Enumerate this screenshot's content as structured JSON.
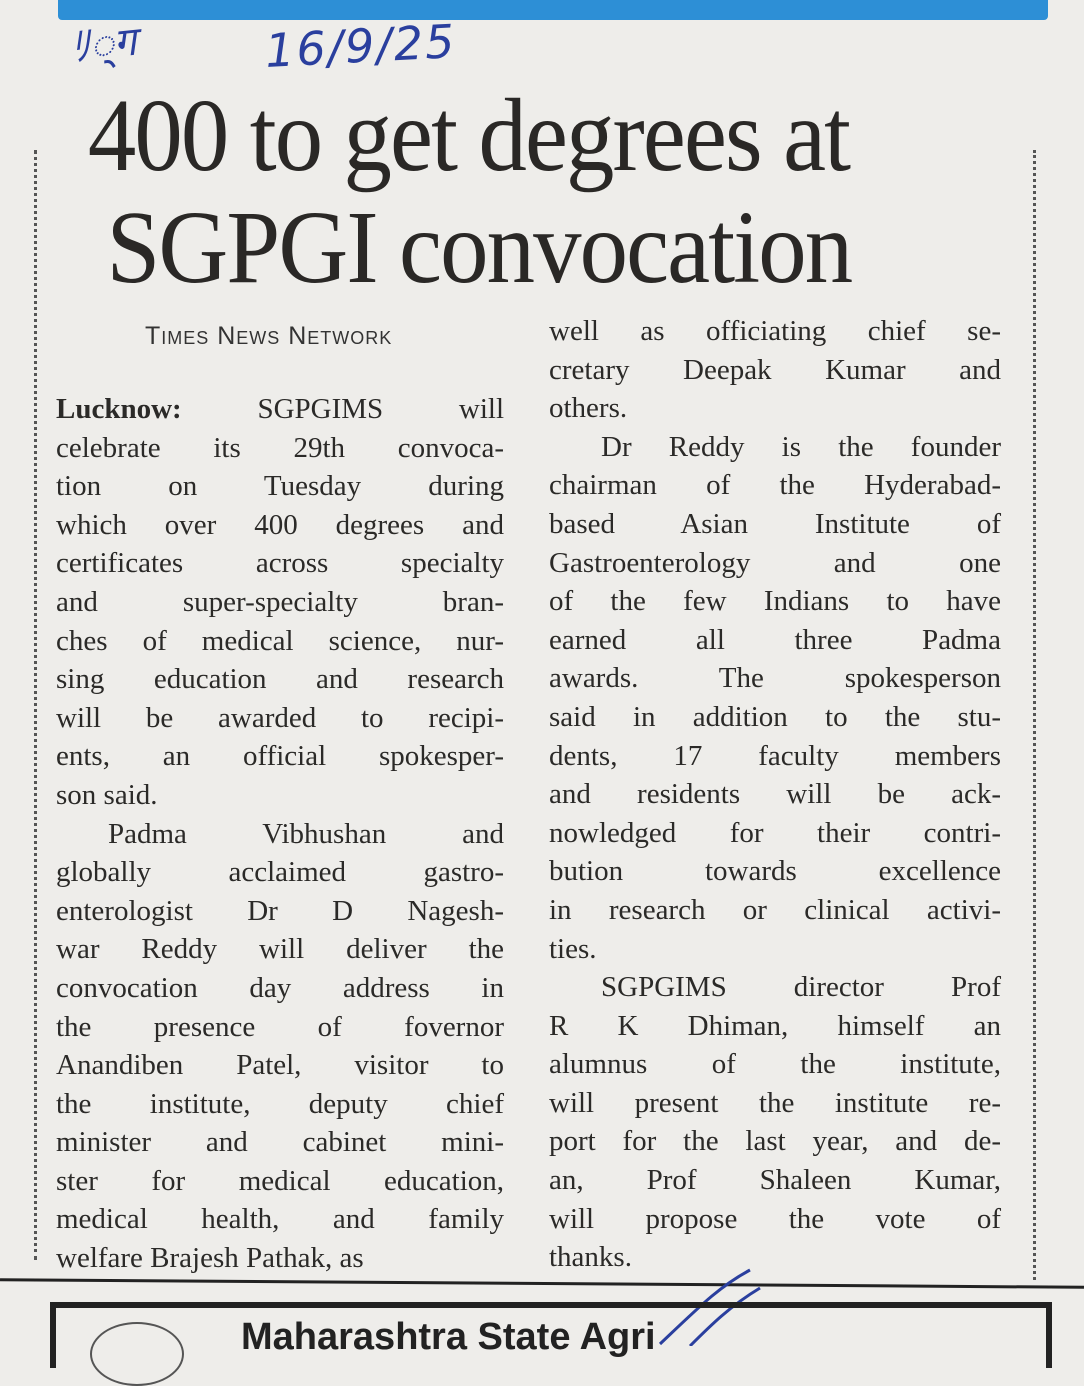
{
  "annotation": {
    "initials": "ﾘ्ग",
    "date": "16/9/25"
  },
  "headline": [
    "400 to get degrees at",
    "SGPGI convocation"
  ],
  "byline": "Times News Network",
  "dateline": "Lucknow:",
  "columns": [
    [
      {
        "lines": [
          " SGPGIMS will",
          "celebrate its 29th convoca-",
          "tion on Tuesday during",
          "which over 400 degrees and",
          "certificates across specialty",
          "and super-specialty bran-",
          "ches of medical science, nur-",
          "sing education and research",
          "will be awarded to recipi-",
          "ents, an official spokesper-",
          "son said."
        ]
      },
      {
        "lines": [
          "Padma Vibhushan and",
          "globally acclaimed gastro-",
          "enterologist Dr D Nagesh-",
          "war Reddy will deliver the",
          "convocation day address in",
          "the presence of fovernor",
          "Anandiben Patel, visitor to",
          "the institute, deputy chief",
          "minister and cabinet mini-",
          "ster for medical education,",
          "medical health, and family",
          "welfare Brajesh Pathak, as"
        ]
      }
    ],
    [
      {
        "lines": [
          "well as officiating chief se-",
          "cretary Deepak Kumar and",
          "others."
        ],
        "continued": true
      },
      {
        "lines": [
          "Dr Reddy is the founder",
          "chairman of the Hyderabad-",
          "based Asian Institute of",
          "Gastroenterology and one",
          "of the few Indians to have",
          "earned all three Padma",
          "awards. The spokesperson",
          "said in addition to the stu-",
          "dents, 17 faculty members",
          "and residents will be ack-",
          "nowledged for their contri-",
          "bution towards excellence",
          "in research or clinical activi-",
          "ties."
        ]
      },
      {
        "lines": [
          "SGPGIMS director Prof",
          "R K Dhiman, himself an",
          "alumnus of the institute,",
          "will present the institute re-",
          "port for the last year, and de-",
          "an, Prof Shaleen Kumar,",
          "will propose the vote of",
          "thanks."
        ]
      }
    ]
  ],
  "bottom_ad": {
    "text": "Maharashtra State Agri"
  },
  "colors": {
    "banner": "#2d8fd6",
    "ink": "#2a3f9e",
    "text": "#2b2a28"
  }
}
